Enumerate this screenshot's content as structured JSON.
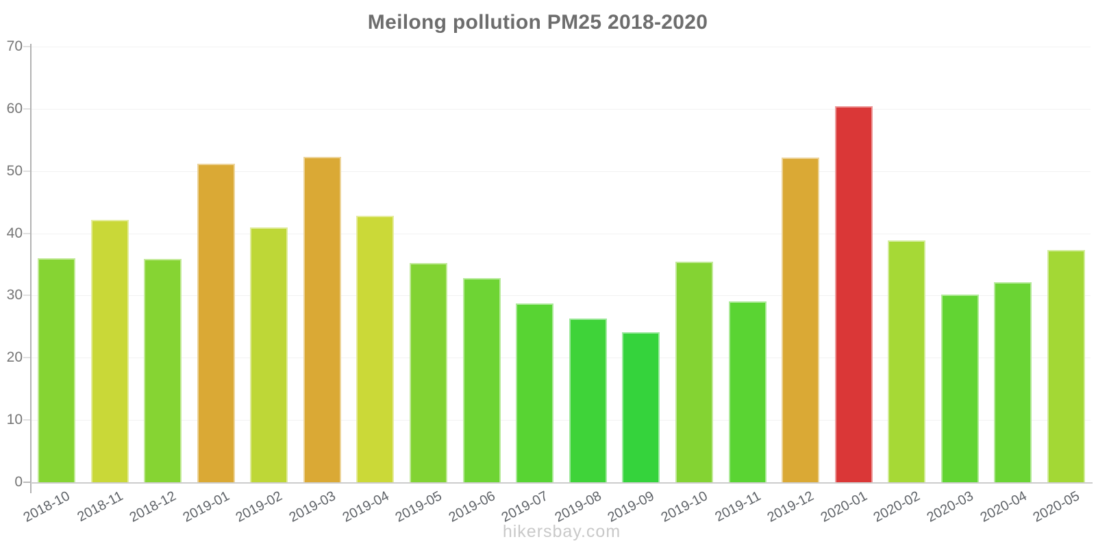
{
  "chart_data": {
    "type": "bar",
    "title": "Meilong pollution PM25 2018-2020",
    "xlabel": "",
    "ylabel": "",
    "ylim": [
      0,
      70
    ],
    "y_ticks": [
      0,
      10,
      20,
      30,
      40,
      50,
      60,
      70
    ],
    "grid": "horizontal",
    "legend": "none",
    "categories": [
      "2018-10",
      "2018-11",
      "2018-12",
      "2019-01",
      "2019-02",
      "2019-03",
      "2019-04",
      "2019-05",
      "2019-06",
      "2019-07",
      "2019-08",
      "2019-09",
      "2019-10",
      "2019-11",
      "2019-12",
      "2020-01",
      "2020-02",
      "2020-03",
      "2020-04",
      "2020-05"
    ],
    "values": [
      36.0,
      42.2,
      35.9,
      51.2,
      41.0,
      52.3,
      42.8,
      35.2,
      32.8,
      28.7,
      26.3,
      24.1,
      35.4,
      29.1,
      52.2,
      60.4,
      38.8,
      30.2,
      32.1,
      37.3
    ],
    "bar_colors": [
      "#86D433",
      "#C9D838",
      "#86D433",
      "#DAA935",
      "#BED737",
      "#DAA935",
      "#CBD938",
      "#82D333",
      "#6ED434",
      "#58D433",
      "#3FD339",
      "#35D33C",
      "#84D333",
      "#5AD433",
      "#DAA935",
      "#DA3737",
      "#A6D936",
      "#62D433",
      "#6BD434",
      "#A3D835"
    ]
  },
  "colors": {
    "axis": "#b3b3b3",
    "gridline": "#f2f2f2",
    "tick_labels": "#757575",
    "x_labels": "#5f6368",
    "title": "#6d6d6d",
    "footer": "#c9c9c9"
  },
  "footer": {
    "text": "hikersbay.com"
  }
}
